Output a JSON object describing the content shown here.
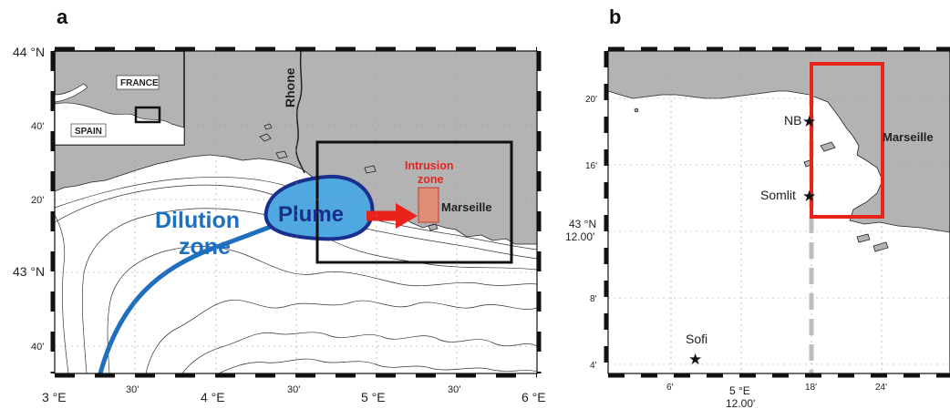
{
  "panels": {
    "a": {
      "letter": "a",
      "inset": {
        "france": "FRANCE",
        "spain": "SPAIN"
      },
      "labels": {
        "river": "Rhone",
        "dilution_line1": "Dilution",
        "dilution_line2": "zone",
        "plume": "Plume",
        "intrusion_line1": "Intrusion",
        "intrusion_line2": "zone",
        "city": "Marseille"
      },
      "lat_ticks": {
        "t44": "44 °N",
        "t40a": "40'",
        "t20": "20'",
        "t43": "43 °N",
        "t40b": "40'"
      },
      "lon_ticks": {
        "t3": "3 °E",
        "t30a": "30'",
        "t4": "4 °E",
        "t30b": "30'",
        "t5": "5 °E",
        "t30c": "30'",
        "t6": "6 °E"
      }
    },
    "b": {
      "letter": "b",
      "labels": {
        "city": "Marseille"
      },
      "stations": {
        "nb": "NB",
        "somlit": "Somlit",
        "sofi": "Sofi"
      },
      "lat_ticks": {
        "t20": "20'",
        "t16": "16'",
        "t43a": "43 °N",
        "t43b": "12.00'",
        "t8": "8'",
        "t4": "4'"
      },
      "lon_ticks": {
        "t6": "6'",
        "t5a": "5 °E",
        "t5b": "12.00'",
        "t18": "18'",
        "t24": "24'"
      }
    }
  },
  "colors": {
    "land": "#b3b3b3",
    "dilution": "#1f6fbf",
    "plume_fill": "#4fa8e0",
    "plume_edge": "#1a2f8c",
    "arrow": "#e8231c",
    "intrusion_text": "#e8231c",
    "intrusion_box": "#e9876b",
    "zoom_box": "#111111",
    "red_box": "#e8231c",
    "dashed_line": "#bdbdbd"
  }
}
